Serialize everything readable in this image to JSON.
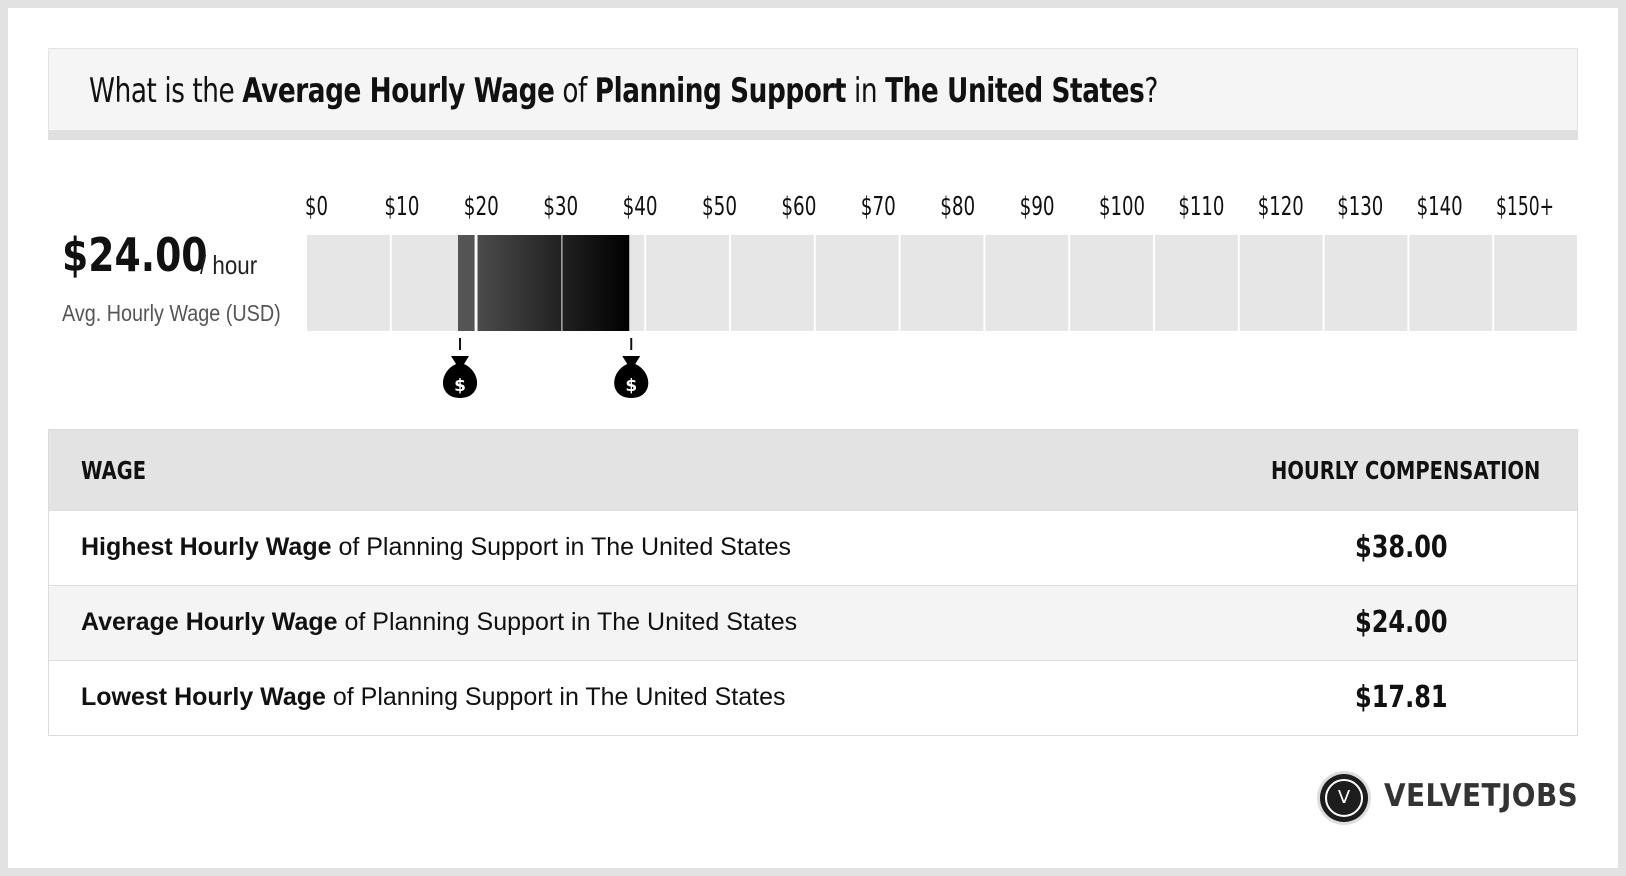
{
  "header": {
    "prefix": "What is the ",
    "metric": "Average Hourly Wage",
    "of": " of ",
    "job": "Planning Support",
    "in": " in ",
    "location": "The United States",
    "suffix": "?"
  },
  "summary": {
    "value": "$24.00",
    "unit": "/ hour",
    "caption": "Avg. Hourly Wage (USD)"
  },
  "chart_data": {
    "type": "bar",
    "orientation": "horizontal-range",
    "ticks": [
      "$0",
      "$10",
      "$20",
      "$30",
      "$40",
      "$50",
      "$60",
      "$70",
      "$80",
      "$90",
      "$100",
      "$110",
      "$120",
      "$130",
      "$140",
      "$150+"
    ],
    "tick_values": [
      0,
      10,
      20,
      30,
      40,
      50,
      60,
      70,
      80,
      90,
      100,
      110,
      120,
      130,
      140,
      150
    ],
    "range": {
      "low": 17.81,
      "average": 24.0,
      "high": 38.0
    },
    "xlim": [
      0,
      150
    ],
    "markers": [
      {
        "value": 17.81,
        "icon": "money-bag-icon",
        "symbol": "$"
      },
      {
        "value": 38.0,
        "icon": "money-bag-icon",
        "symbol": "$"
      }
    ],
    "colors": {
      "background": "#e6e6e6",
      "low_segment": "#545454",
      "high_segment": "#000000"
    }
  },
  "table": {
    "headers": {
      "wage": "WAGE",
      "compensation": "HOURLY COMPENSATION"
    },
    "rows": [
      {
        "bold": "Highest Hourly Wage",
        "rest": " of Planning Support in The United States",
        "value": "$38.00"
      },
      {
        "bold": "Average Hourly Wage",
        "rest": " of Planning Support in The United States",
        "value": "$24.00"
      },
      {
        "bold": "Lowest Hourly Wage",
        "rest": " of Planning Support in The United States",
        "value": "$17.81"
      }
    ]
  },
  "brand": {
    "logo_letter": "V",
    "name": "VELVETJOBS"
  }
}
